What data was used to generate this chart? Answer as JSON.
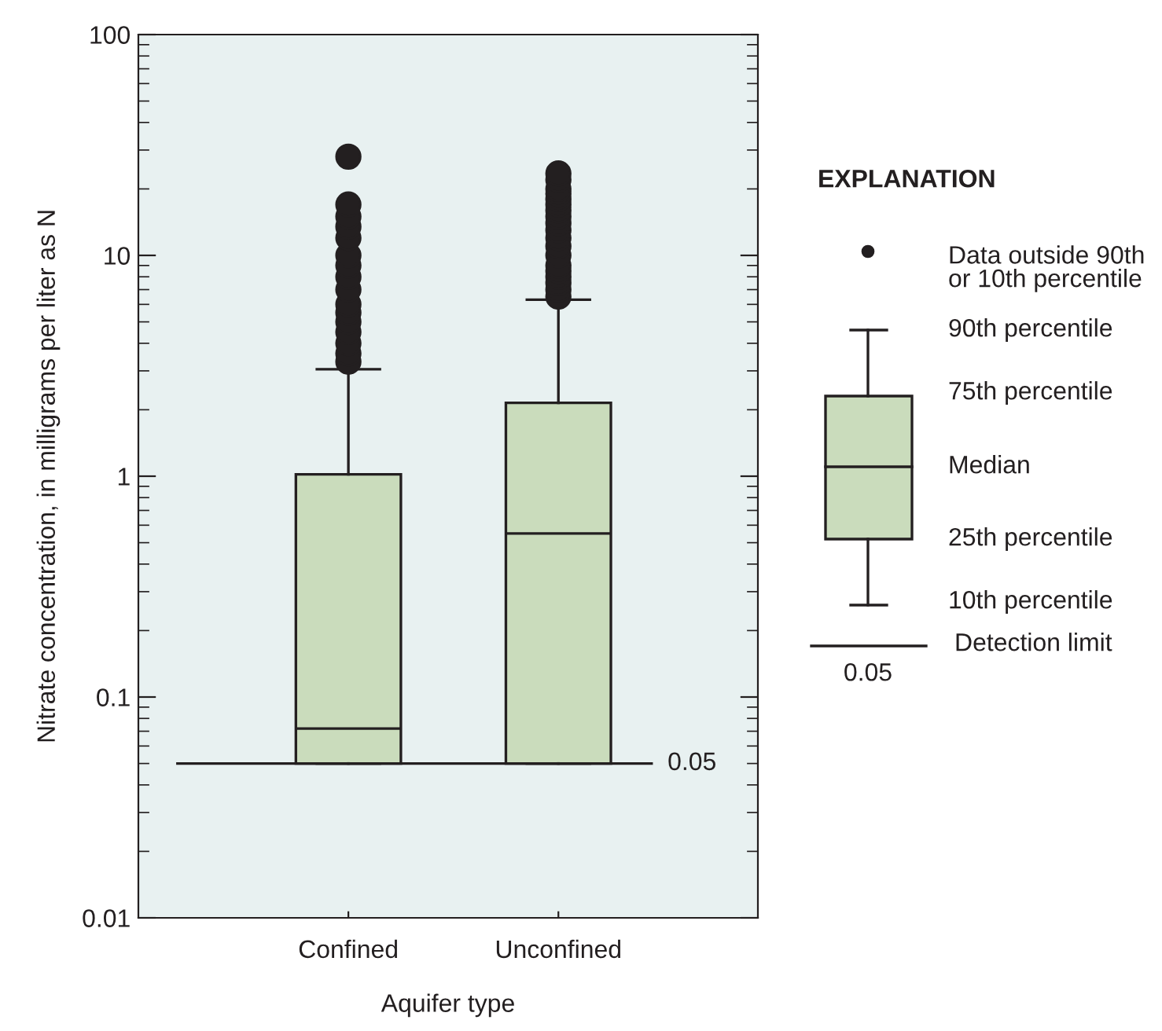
{
  "chart_data": {
    "type": "box",
    "xlabel": "Aquifer type",
    "ylabel": "Nitrate concentration, in milligrams per liter as N",
    "categories": [
      "Confined",
      "Unconfined"
    ],
    "series": [
      {
        "color": "#cadcbc",
        "boxes": [
          {
            "low": 0.05,
            "q1": 0.05,
            "median": 0.072,
            "q3": 1.02,
            "high": 3.05,
            "outliers": [
              3.3,
              3.6,
              4,
              4.5,
              5,
              5.5,
              6,
              7,
              8,
              9,
              10,
              12,
              13.5,
              15,
              17,
              28
            ]
          },
          {
            "low": 0.05,
            "q1": 0.05,
            "median": 0.55,
            "q3": 2.15,
            "high": 6.3,
            "outliers": [
              6.5,
              7,
              7.5,
              8,
              8.5,
              9,
              10,
              11,
              12,
              13,
              14,
              15,
              16,
              17,
              18,
              19,
              20,
              22,
              23.5
            ]
          }
        ]
      }
    ],
    "log": "y",
    "ylim": [
      0.01,
      100
    ],
    "yticks": [
      0.01,
      0.1,
      1,
      10,
      100
    ],
    "grid": false,
    "ref_lines": [
      {
        "axis": "y",
        "value": 0.05,
        "label": "0.05",
        "color": "#231f20"
      }
    ],
    "annotations": [
      "EXPLANATION",
      "Data outside 90th\nor 10th percentile",
      "90th percentile",
      "75th percentile",
      "Median",
      "25th percentile",
      "10th percentile",
      "Detection limit",
      "0.05"
    ]
  }
}
